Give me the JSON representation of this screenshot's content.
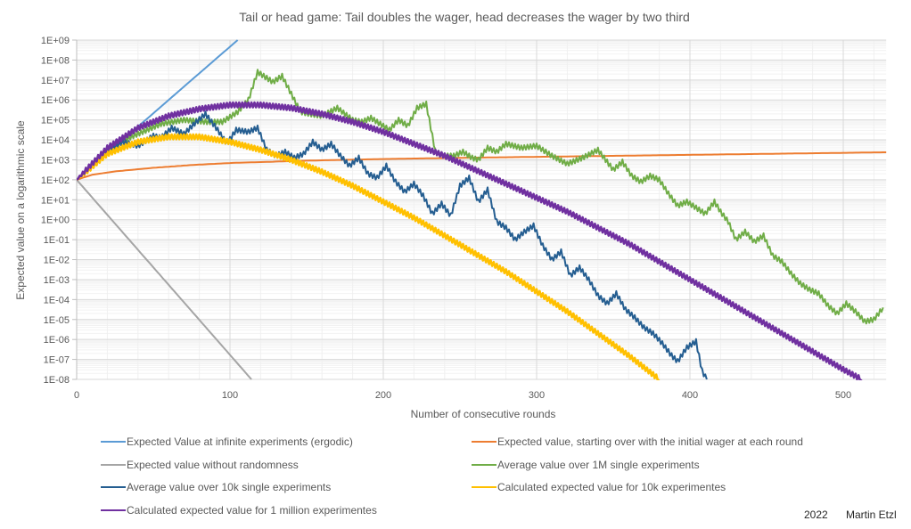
{
  "chart_data": {
    "type": "line",
    "title": "Tail or head game: Tail doubles the wager, head decreases the wager by two third",
    "xlabel": "Number of consecutive rounds",
    "ylabel": "Expected value on a logarithmic scale",
    "yscale": "log",
    "xlim": [
      0,
      528
    ],
    "ylim_log10": [
      -8,
      9
    ],
    "x_ticks": [
      0,
      100,
      200,
      300,
      400,
      500
    ],
    "x_tick_labels": [
      "0",
      "100",
      "200",
      "300",
      "400",
      "500"
    ],
    "y_ticks_log10": [
      9,
      8,
      7,
      6,
      5,
      4,
      3,
      2,
      1,
      0,
      -1,
      -2,
      -3,
      -4,
      -5,
      -6,
      -7,
      -8
    ],
    "y_tick_labels": [
      "1E+09",
      "1E+08",
      "1E+07",
      "1E+06",
      "1E+05",
      "1E+04",
      "1E+03",
      "1E+02",
      "1E+01",
      "1E+00",
      "1E-01",
      "1E-02",
      "1E-03",
      "1E-04",
      "1E-05",
      "1E-06",
      "1E-07",
      "1E-08"
    ],
    "grid": true,
    "legend_position": "bottom",
    "credit": {
      "year": "2022",
      "author": "Martin Etzl"
    },
    "series": [
      {
        "name": "Expected Value at infinite experiments (ergodic)",
        "color": "#5B9BD5",
        "x": [
          0,
          105
        ],
        "log10_y": [
          2,
          9
        ],
        "zigzag": false
      },
      {
        "name": "Expected value, starting over with the initial wager at each round",
        "color": "#ED7D31",
        "x": [
          0,
          10,
          25,
          50,
          75,
          100,
          150,
          200,
          250,
          300,
          350,
          400,
          450,
          500,
          528
        ],
        "log10_y": [
          2,
          2.25,
          2.42,
          2.6,
          2.74,
          2.84,
          2.96,
          3.04,
          3.1,
          3.15,
          3.2,
          3.25,
          3.3,
          3.35,
          3.38
        ],
        "zigzag": false
      },
      {
        "name": "Expected value without randomness",
        "color": "#A5A5A5",
        "x": [
          0,
          114
        ],
        "log10_y": [
          2,
          -8
        ],
        "zigzag": false
      },
      {
        "name": "Average value over 1M single experiments",
        "color": "#70AD47",
        "x": [
          0,
          20,
          40,
          55,
          70,
          85,
          95,
          105,
          112,
          118,
          122,
          128,
          134,
          140,
          146,
          152,
          160,
          170,
          180,
          186,
          192,
          198,
          204,
          210,
          216,
          222,
          228,
          234,
          240,
          246,
          252,
          258,
          262,
          268,
          274,
          280,
          290,
          300,
          310,
          320,
          330,
          340,
          350,
          356,
          362,
          368,
          374,
          380,
          386,
          392,
          398,
          404,
          410,
          416,
          420,
          425,
          430,
          436,
          442,
          448,
          454,
          460,
          466,
          472,
          478,
          484,
          490,
          496,
          502,
          508,
          514,
          520,
          526
        ],
        "log10_y": [
          2,
          3.6,
          4.3,
          4.8,
          5.0,
          4.9,
          4.9,
          5.4,
          6.0,
          7.4,
          7.2,
          6.9,
          7.2,
          6.3,
          5.4,
          5.3,
          5.2,
          5.6,
          5.0,
          4.9,
          5.1,
          4.8,
          4.5,
          5.0,
          4.7,
          5.6,
          5.8,
          3.4,
          3.2,
          3.2,
          3.4,
          3.1,
          3.0,
          3.6,
          3.4,
          3.8,
          3.6,
          3.7,
          3.2,
          2.8,
          3.1,
          3.5,
          2.5,
          2.9,
          2.2,
          1.9,
          2.2,
          2.0,
          1.3,
          0.7,
          0.9,
          0.6,
          0.3,
          0.9,
          0.4,
          -0.1,
          -1.0,
          -0.6,
          -1.1,
          -0.8,
          -1.8,
          -2.1,
          -2.7,
          -3.2,
          -3.5,
          -3.7,
          -4.3,
          -4.7,
          -4.2,
          -4.6,
          -5.1,
          -5.0,
          -4.4
        ],
        "zigzag": true
      },
      {
        "name": "Average value over 10k single experiments",
        "color": "#255E91",
        "x": [
          0,
          10,
          20,
          30,
          40,
          50,
          55,
          62,
          70,
          78,
          84,
          92,
          98,
          104,
          112,
          118,
          124,
          130,
          136,
          142,
          148,
          154,
          160,
          166,
          172,
          178,
          184,
          190,
          196,
          202,
          208,
          214,
          220,
          226,
          232,
          238,
          244,
          250,
          256,
          262,
          268,
          274,
          280,
          286,
          292,
          298,
          304,
          310,
          316,
          322,
          328,
          334,
          340,
          346,
          352,
          358,
          364,
          370,
          376,
          382,
          388,
          392,
          398,
          404,
          408,
          411
        ],
        "log10_y": [
          2,
          2.8,
          3.4,
          3.9,
          3.7,
          4.2,
          4.1,
          4.6,
          4.3,
          4.9,
          5.3,
          4.5,
          3.8,
          4.5,
          4.4,
          4.6,
          3.5,
          3.2,
          3.4,
          3.1,
          3.3,
          3.9,
          3.5,
          3.8,
          3.2,
          2.7,
          3.1,
          2.3,
          2.1,
          2.7,
          1.9,
          1.4,
          1.8,
          1.2,
          0.3,
          0.8,
          0.2,
          1.7,
          2.1,
          0.9,
          1.5,
          -0.1,
          -0.4,
          -1.0,
          -0.6,
          -0.3,
          -1.3,
          -2.0,
          -1.6,
          -2.8,
          -2.4,
          -3.0,
          -3.8,
          -4.2,
          -3.7,
          -4.5,
          -4.9,
          -5.4,
          -5.7,
          -6.2,
          -6.8,
          -7.1,
          -6.4,
          -6.1,
          -7.6,
          -8.0
        ],
        "zigzag": true
      },
      {
        "name": "Calculated expected value for 10k experimentes",
        "color": "#FFC000",
        "x": [
          0,
          20,
          40,
          60,
          80,
          100,
          120,
          140,
          160,
          180,
          200,
          220,
          240,
          260,
          280,
          300,
          320,
          340,
          360,
          380
        ],
        "log10_y": [
          2,
          3.3,
          3.9,
          4.15,
          4.15,
          3.9,
          3.5,
          3.0,
          2.4,
          1.7,
          0.9,
          0.1,
          -0.8,
          -1.7,
          -2.6,
          -3.6,
          -4.6,
          -5.7,
          -6.8,
          -8.0
        ],
        "zigzag": true
      },
      {
        "name": "Calculated expected value for 1 million experimentes",
        "color": "#7030A0",
        "x": [
          0,
          20,
          40,
          60,
          80,
          100,
          120,
          140,
          160,
          180,
          200,
          220,
          240,
          260,
          280,
          300,
          320,
          340,
          360,
          380,
          400,
          420,
          440,
          460,
          480,
          500,
          512
        ],
        "log10_y": [
          2,
          3.6,
          4.6,
          5.2,
          5.55,
          5.75,
          5.75,
          5.6,
          5.3,
          4.9,
          4.4,
          3.8,
          3.2,
          2.5,
          1.8,
          1.1,
          0.4,
          -0.4,
          -1.2,
          -2.1,
          -3.0,
          -3.9,
          -4.8,
          -5.7,
          -6.6,
          -7.5,
          -8.0
        ],
        "zigzag": true
      }
    ]
  },
  "legend": {
    "items": [
      {
        "label": "Expected Value at infinite experiments (ergodic)",
        "color": "#5B9BD5"
      },
      {
        "label": "Expected value, starting over with the initial wager at each round",
        "color": "#ED7D31"
      },
      {
        "label": "Expected value without randomness",
        "color": "#A5A5A5"
      },
      {
        "label": "Average value over 1M single experiments",
        "color": "#70AD47"
      },
      {
        "label": "Average value over 10k single experiments",
        "color": "#255E91"
      },
      {
        "label": "Calculated expected value for 10k experimentes",
        "color": "#FFC000"
      },
      {
        "label": "Calculated expected value for 1 million experimentes",
        "color": "#7030A0"
      }
    ]
  }
}
